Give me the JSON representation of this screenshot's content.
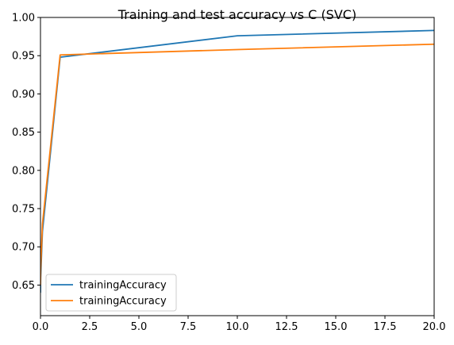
{
  "chart_data": {
    "type": "line",
    "title": "Training and test accuracy vs C (SVC)",
    "xlabel": "",
    "ylabel": "",
    "xlim": [
      0,
      20
    ],
    "ylim": [
      0.61,
      1.0
    ],
    "x_ticks": [
      0.0,
      2.5,
      5.0,
      7.5,
      10.0,
      12.5,
      15.0,
      17.5,
      20.0
    ],
    "x_tick_labels": [
      "0.0",
      "2.5",
      "5.0",
      "7.5",
      "10.0",
      "12.5",
      "15.0",
      "17.5",
      "20.0"
    ],
    "y_ticks": [
      0.65,
      0.7,
      0.75,
      0.8,
      0.85,
      0.9,
      0.95,
      1.0
    ],
    "y_tick_labels": [
      "0.65",
      "0.70",
      "0.75",
      "0.80",
      "0.85",
      "0.90",
      "0.95",
      "1.00"
    ],
    "grid": false,
    "legend_position": "lower-left",
    "series": [
      {
        "name": "trainingAccuracy",
        "color": "#1f77b4",
        "x": [
          0.001,
          0.01,
          0.1,
          1,
          10,
          20
        ],
        "y": [
          0.64,
          0.66,
          0.72,
          0.948,
          0.976,
          0.983
        ]
      },
      {
        "name": "trainingAccuracy",
        "color": "#ff7f0e",
        "x": [
          0.001,
          0.01,
          0.1,
          1,
          10,
          20
        ],
        "y": [
          0.65,
          0.67,
          0.73,
          0.951,
          0.958,
          0.965
        ]
      }
    ]
  }
}
